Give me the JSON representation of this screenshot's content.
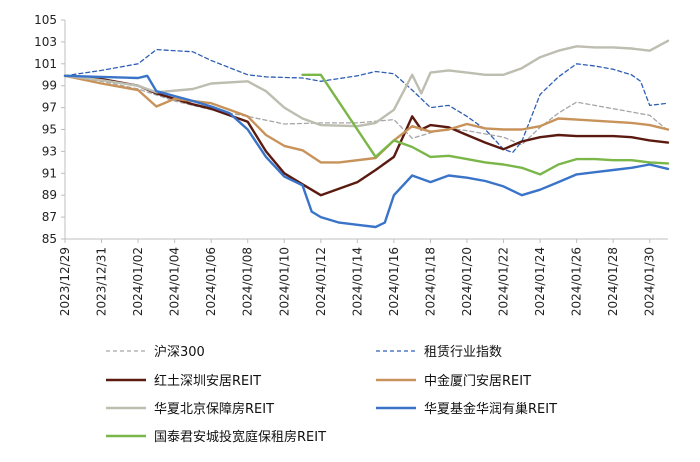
{
  "chart_data": {
    "type": "line",
    "title": "",
    "xlabel": "",
    "ylabel": "",
    "ylim": [
      85,
      105
    ],
    "yticks": [
      85,
      87,
      89,
      91,
      93,
      95,
      97,
      99,
      101,
      103,
      105
    ],
    "xlim": [
      "2023-12-29",
      "2024-01-31"
    ],
    "xticks": [
      "2023/12/29",
      "2023/12/31",
      "2024/01/02",
      "2024/01/04",
      "2024/01/06",
      "2024/01/08",
      "2024/01/10",
      "2024/01/12",
      "2024/01/14",
      "2024/01/16",
      "2024/01/18",
      "2024/01/20",
      "2024/01/22",
      "2024/01/24",
      "2024/01/26",
      "2024/01/28",
      "2024/01/30"
    ],
    "grid": false,
    "legend_position": "bottom",
    "series": [
      {
        "name": "沪深300",
        "color": "#a6a6a6",
        "dash": "dashed",
        "points": [
          [
            "2023-12-29",
            99.9
          ],
          [
            "2023-12-31",
            99.4
          ],
          [
            "2024-01-02",
            98.7
          ],
          [
            "2024-01-04",
            97.6
          ],
          [
            "2024-01-06",
            96.8
          ],
          [
            "2024-01-08",
            96.2
          ],
          [
            "2024-01-10",
            95.5
          ],
          [
            "2024-01-12",
            95.6
          ],
          [
            "2024-01-14",
            95.6
          ],
          [
            "2024-01-16",
            95.9
          ],
          [
            "2024-01-17",
            94.2
          ],
          [
            "2024-01-18",
            94.7
          ],
          [
            "2024-01-19",
            95.1
          ],
          [
            "2024-01-20",
            94.9
          ],
          [
            "2024-01-22",
            94.3
          ],
          [
            "2024-01-23",
            93.6
          ],
          [
            "2024-01-24",
            95.2
          ],
          [
            "2024-01-25",
            96.5
          ],
          [
            "2024-01-26",
            97.5
          ],
          [
            "2024-01-27",
            97.2
          ],
          [
            "2024-01-28",
            96.9
          ],
          [
            "2024-01-29",
            96.6
          ],
          [
            "2024-01-30",
            96.3
          ],
          [
            "2024-01-31",
            94.9
          ]
        ]
      },
      {
        "name": "租赁行业指数",
        "color": "#2e5fb4",
        "dash": "dashed",
        "points": [
          [
            "2023-12-29",
            99.9
          ],
          [
            "2023-12-31",
            100.4
          ],
          [
            "2024-01-02",
            101.0
          ],
          [
            "2024-01-03",
            102.3
          ],
          [
            "2024-01-05",
            102.1
          ],
          [
            "2024-01-06",
            101.3
          ],
          [
            "2024-01-08",
            100.0
          ],
          [
            "2024-01-09",
            99.8
          ],
          [
            "2024-01-11",
            99.7
          ],
          [
            "2024-01-12",
            99.4
          ],
          [
            "2024-01-14",
            99.9
          ],
          [
            "2024-01-15",
            100.3
          ],
          [
            "2024-01-16",
            100.1
          ],
          [
            "2024-01-17",
            98.6
          ],
          [
            "2024-01-18",
            97.0
          ],
          [
            "2024-01-19",
            97.2
          ],
          [
            "2024-01-20",
            96.2
          ],
          [
            "2024-01-21",
            95.0
          ],
          [
            "2024-01-22",
            93.2
          ],
          [
            "2024-01-22.5",
            92.9
          ],
          [
            "2024-01-23",
            93.9
          ],
          [
            "2024-01-24",
            98.2
          ],
          [
            "2024-01-25",
            99.8
          ],
          [
            "2024-01-26",
            101.0
          ],
          [
            "2024-01-27",
            100.8
          ],
          [
            "2024-01-28",
            100.5
          ],
          [
            "2024-01-29",
            100.0
          ],
          [
            "2024-01-29.5",
            99.4
          ],
          [
            "2024-01-30",
            97.2
          ],
          [
            "2024-01-31",
            97.4
          ]
        ]
      },
      {
        "name": "红土深圳安居REIT",
        "color": "#5a1a10",
        "dash": "solid",
        "points": [
          [
            "2023-12-29",
            99.9
          ],
          [
            "2023-12-31",
            99.6
          ],
          [
            "2024-01-02",
            99.0
          ],
          [
            "2024-01-03",
            98.3
          ],
          [
            "2024-01-05",
            97.3
          ],
          [
            "2024-01-06",
            96.9
          ],
          [
            "2024-01-08",
            95.7
          ],
          [
            "2024-01-09",
            93.0
          ],
          [
            "2024-01-10",
            91.0
          ],
          [
            "2024-01-11",
            90.0
          ],
          [
            "2024-01-12",
            89.0
          ],
          [
            "2024-01-14",
            90.2
          ],
          [
            "2024-01-15",
            91.3
          ],
          [
            "2024-01-16",
            92.5
          ],
          [
            "2024-01-17",
            96.2
          ],
          [
            "2024-01-17.5",
            95.0
          ],
          [
            "2024-01-18",
            95.4
          ],
          [
            "2024-01-19",
            95.2
          ],
          [
            "2024-01-20",
            94.5
          ],
          [
            "2024-01-21",
            93.8
          ],
          [
            "2024-01-22",
            93.2
          ],
          [
            "2024-01-23",
            93.9
          ],
          [
            "2024-01-24",
            94.3
          ],
          [
            "2024-01-25",
            94.5
          ],
          [
            "2024-01-26",
            94.4
          ],
          [
            "2024-01-27",
            94.4
          ],
          [
            "2024-01-28",
            94.4
          ],
          [
            "2024-01-29",
            94.3
          ],
          [
            "2024-01-30",
            94.0
          ],
          [
            "2024-01-31",
            93.8
          ]
        ]
      },
      {
        "name": "中金厦门安居REIT",
        "color": "#c8935a",
        "dash": "solid",
        "points": [
          [
            "2023-12-29",
            99.9
          ],
          [
            "2023-12-31",
            99.2
          ],
          [
            "2024-01-02",
            98.6
          ],
          [
            "2024-01-03",
            97.1
          ],
          [
            "2024-01-04",
            97.8
          ],
          [
            "2024-01-06",
            97.4
          ],
          [
            "2024-01-07",
            96.8
          ],
          [
            "2024-01-08",
            96.2
          ],
          [
            "2024-01-09",
            94.5
          ],
          [
            "2024-01-10",
            93.5
          ],
          [
            "2024-01-11",
            93.1
          ],
          [
            "2024-01-12",
            92.0
          ],
          [
            "2024-01-13",
            92.0
          ],
          [
            "2024-01-15",
            92.4
          ],
          [
            "2024-01-16",
            94.0
          ],
          [
            "2024-01-17",
            95.3
          ],
          [
            "2024-01-18",
            94.8
          ],
          [
            "2024-01-19",
            95.0
          ],
          [
            "2024-01-20",
            95.5
          ],
          [
            "2024-01-21",
            95.1
          ],
          [
            "2024-01-22",
            95.0
          ],
          [
            "2024-01-23",
            95.0
          ],
          [
            "2024-01-24",
            95.3
          ],
          [
            "2024-01-25",
            96.0
          ],
          [
            "2024-01-26",
            95.9
          ],
          [
            "2024-01-27",
            95.8
          ],
          [
            "2024-01-28",
            95.7
          ],
          [
            "2024-01-29",
            95.6
          ],
          [
            "2024-01-30",
            95.4
          ],
          [
            "2024-01-31",
            95.0
          ]
        ]
      },
      {
        "name": "华夏北京保障房REIT",
        "color": "#bdbdb0",
        "dash": "solid",
        "points": [
          [
            "2023-12-29",
            99.9
          ],
          [
            "2023-12-31",
            99.5
          ],
          [
            "2024-01-02",
            99.0
          ],
          [
            "2024-01-03",
            98.4
          ],
          [
            "2024-01-05",
            98.7
          ],
          [
            "2024-01-06",
            99.2
          ],
          [
            "2024-01-08",
            99.4
          ],
          [
            "2024-01-09",
            98.5
          ],
          [
            "2024-01-10",
            97.0
          ],
          [
            "2024-01-11",
            96.0
          ],
          [
            "2024-01-12",
            95.4
          ],
          [
            "2024-01-14",
            95.3
          ],
          [
            "2024-01-15",
            95.6
          ],
          [
            "2024-01-16",
            96.8
          ],
          [
            "2024-01-17",
            100.0
          ],
          [
            "2024-01-17.5",
            98.3
          ],
          [
            "2024-01-18",
            100.2
          ],
          [
            "2024-01-19",
            100.4
          ],
          [
            "2024-01-20",
            100.2
          ],
          [
            "2024-01-21",
            100.0
          ],
          [
            "2024-01-22",
            100.0
          ],
          [
            "2024-01-23",
            100.6
          ],
          [
            "2024-01-24",
            101.6
          ],
          [
            "2024-01-25",
            102.2
          ],
          [
            "2024-01-26",
            102.6
          ],
          [
            "2024-01-27",
            102.5
          ],
          [
            "2024-01-28",
            102.5
          ],
          [
            "2024-01-29",
            102.4
          ],
          [
            "2024-01-30",
            102.2
          ],
          [
            "2024-01-31",
            103.1
          ]
        ]
      },
      {
        "name": "华夏基金华润有巢REIT",
        "color": "#3a74c9",
        "dash": "solid",
        "points": [
          [
            "2023-12-29",
            99.9
          ],
          [
            "2023-12-31",
            99.8
          ],
          [
            "2024-01-02",
            99.7
          ],
          [
            "2024-01-02.5",
            99.9
          ],
          [
            "2024-01-03",
            98.5
          ],
          [
            "2024-01-05",
            97.6
          ],
          [
            "2024-01-06",
            97.1
          ],
          [
            "2024-01-07",
            96.5
          ],
          [
            "2024-01-08",
            95.0
          ],
          [
            "2024-01-09",
            92.5
          ],
          [
            "2024-01-10",
            90.7
          ],
          [
            "2024-01-11",
            89.9
          ],
          [
            "2024-01-11.5",
            87.5
          ],
          [
            "2024-01-12",
            87.0
          ],
          [
            "2024-01-13",
            86.5
          ],
          [
            "2024-01-14",
            86.3
          ],
          [
            "2024-01-15",
            86.1
          ],
          [
            "2024-01-15.5",
            86.5
          ],
          [
            "2024-01-16",
            89.0
          ],
          [
            "2024-01-17",
            90.8
          ],
          [
            "2024-01-18",
            90.2
          ],
          [
            "2024-01-19",
            90.8
          ],
          [
            "2024-01-20",
            90.6
          ],
          [
            "2024-01-21",
            90.3
          ],
          [
            "2024-01-22",
            89.8
          ],
          [
            "2024-01-23",
            89.0
          ],
          [
            "2024-01-24",
            89.5
          ],
          [
            "2024-01-25",
            90.2
          ],
          [
            "2024-01-26",
            90.9
          ],
          [
            "2024-01-27",
            91.1
          ],
          [
            "2024-01-28",
            91.3
          ],
          [
            "2024-01-29",
            91.5
          ],
          [
            "2024-01-30",
            91.8
          ],
          [
            "2024-01-31",
            91.4
          ]
        ]
      },
      {
        "name": "国泰君安城投宽庭保租房REIT",
        "color": "#7ab648",
        "dash": "solid",
        "points": [
          [
            "2024-01-11",
            100.0
          ],
          [
            "2024-01-12",
            100.0
          ],
          [
            "2024-01-15",
            92.5
          ],
          [
            "2024-01-16",
            94.0
          ],
          [
            "2024-01-17",
            93.4
          ],
          [
            "2024-01-18",
            92.5
          ],
          [
            "2024-01-19",
            92.6
          ],
          [
            "2024-01-20",
            92.3
          ],
          [
            "2024-01-21",
            92.0
          ],
          [
            "2024-01-22",
            91.8
          ],
          [
            "2024-01-23",
            91.5
          ],
          [
            "2024-01-24",
            90.9
          ],
          [
            "2024-01-25",
            91.8
          ],
          [
            "2024-01-26",
            92.3
          ],
          [
            "2024-01-27",
            92.3
          ],
          [
            "2024-01-28",
            92.2
          ],
          [
            "2024-01-29",
            92.2
          ],
          [
            "2024-01-30",
            92.0
          ],
          [
            "2024-01-31",
            91.9
          ]
        ]
      }
    ]
  }
}
